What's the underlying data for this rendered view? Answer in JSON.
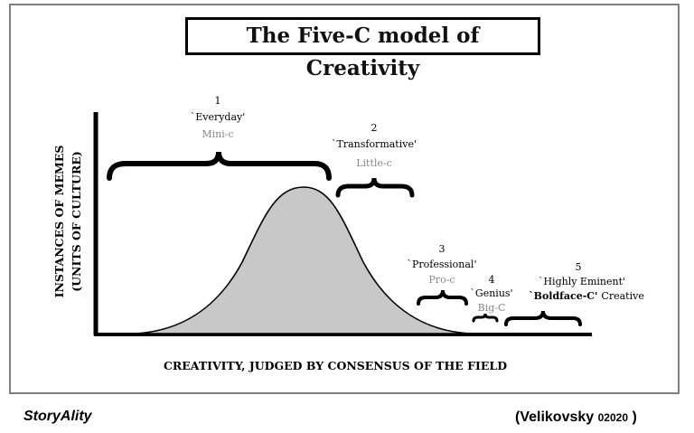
{
  "title": "The Five-C model of Creativity",
  "axes": {
    "x_label": "CREATIVITY, JUDGED BY CONSENSUS OF THE FIELD",
    "y_label_line1": "INSTANCES OF MEMES",
    "y_label_line2": "(UNITS OF CULTURE)"
  },
  "categories": [
    {
      "number": "1",
      "name": "`Everyday'",
      "c_label": "Mini-c"
    },
    {
      "number": "2",
      "name": "`Transformative'",
      "c_label": "Little-c"
    },
    {
      "number": "3",
      "name": "`Professional'",
      "c_label": "Pro-c"
    },
    {
      "number": "4",
      "name": "`Genius'",
      "c_label": "Big-C"
    },
    {
      "number": "5",
      "name": "`Highly Eminent'",
      "c_label_bold": "`Boldface-C'",
      "c_label_rest": "Creative"
    }
  ],
  "footer": {
    "left": "StoryAlity",
    "right_open": "(Velikovsky",
    "right_small": "02020",
    "right_close": ")"
  },
  "colors": {
    "curve_fill": "#c8c8c8",
    "c_label": "#8a8a8a",
    "frame": "#808080",
    "ink": "#000000"
  }
}
